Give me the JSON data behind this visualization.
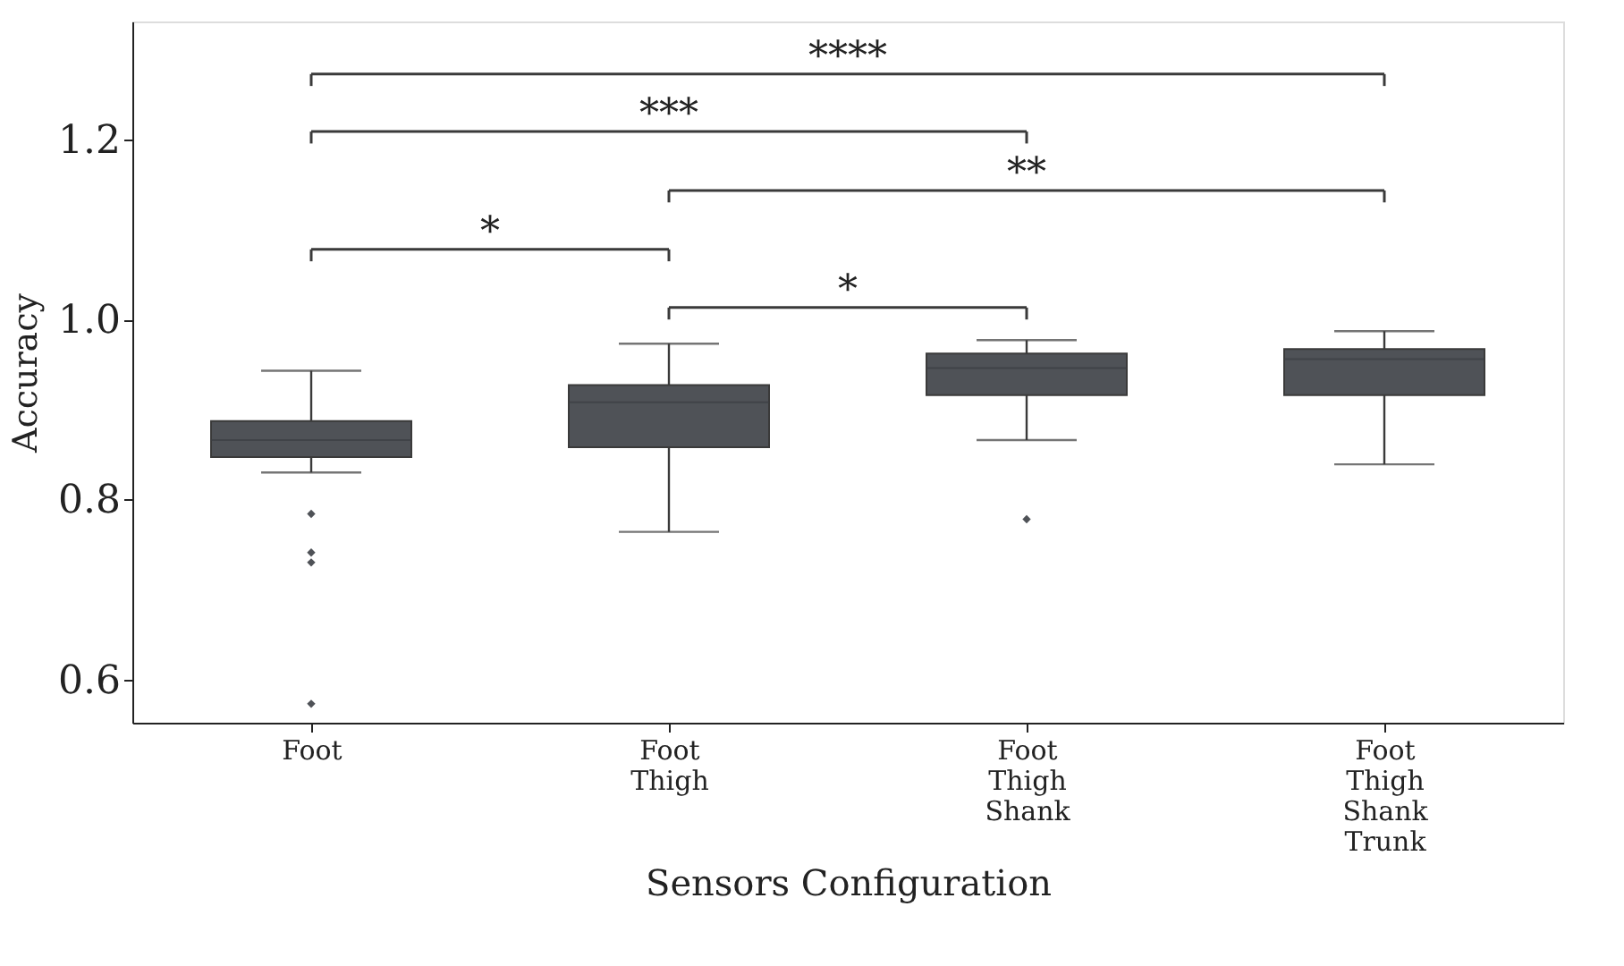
{
  "chart_data": {
    "type": "box",
    "xlabel": "Sensors Configuration",
    "ylabel": "Accuracy",
    "categories": [
      "Foot",
      "Foot\nThigh",
      "Foot\nThigh\nShank",
      "Foot\nThigh\nShank\nTrunk"
    ],
    "boxes": [
      {
        "low": 0.83,
        "q1": 0.847,
        "median": 0.866,
        "q3": 0.887,
        "high": 0.943,
        "outliers": [
          0.784,
          0.741,
          0.73,
          0.573
        ]
      },
      {
        "low": 0.764,
        "q1": 0.858,
        "median": 0.908,
        "q3": 0.927,
        "high": 0.973
      },
      {
        "low": 0.866,
        "q1": 0.916,
        "median": 0.946,
        "q3": 0.962,
        "high": 0.977,
        "outliers": [
          0.778
        ]
      },
      {
        "low": 0.839,
        "q1": 0.916,
        "median": 0.956,
        "q3": 0.967,
        "high": 0.987
      }
    ],
    "color": "#4f5257",
    "ylim": [
      0.552,
      1.331
    ],
    "yticks": [
      0.6,
      0.8,
      {
        "value": 1.0,
        "label": "1.0"
      },
      1.2
    ],
    "grid": false,
    "annotations": [
      "****",
      "***",
      "**",
      "*",
      "*"
    ]
  }
}
